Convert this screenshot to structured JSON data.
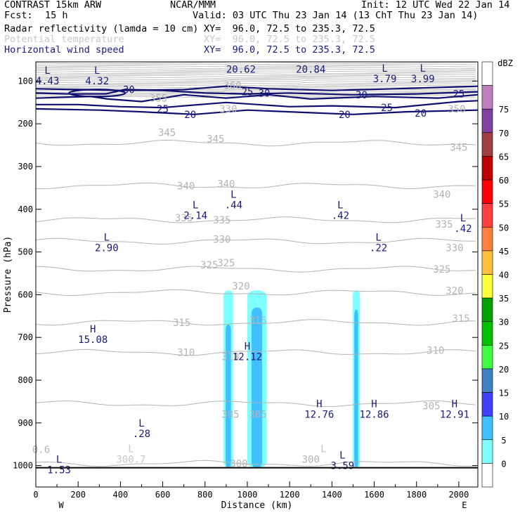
{
  "header": {
    "model": "CONTRAST 15km ARW",
    "center": "NCAR/MMM",
    "init": "Init: 12 UTC Wed 22 Jan 14",
    "fcst_label": "Fcst:",
    "fcst_value": "15 h",
    "valid": "Valid: 03 UTC Thu 23 Jan 14 (13 ChT Thu 23 Jan 14)"
  },
  "fields": [
    {
      "name": "Radar reflectivity (lamda = 10 cm)",
      "xy": "XY=  96.0, 72.5 to 235.3, 72.5",
      "color": "#000000"
    },
    {
      "name": "Potential temperature",
      "xy": "XY=  96.0, 72.5 to 235.3, 72.5",
      "color": "#c8c8c8"
    },
    {
      "name": "Horizontal wind speed",
      "xy": "XY=  96.0, 72.5 to 235.3, 72.5",
      "color": "#1a1a7a"
    }
  ],
  "chart_data": {
    "type": "cross-section",
    "xlabel": "Distance (km)",
    "ylabel": "Pressure (hPa)",
    "xlim": [
      0,
      2090
    ],
    "ylim": [
      1050,
      55
    ],
    "x_ticks": [
      "0",
      "200",
      "400",
      "600",
      "800",
      "1000",
      "1200",
      "1400",
      "1600",
      "1800",
      "2000"
    ],
    "y_ticks": [
      "100",
      "200",
      "300",
      "400",
      "500",
      "600",
      "700",
      "800",
      "900",
      "1000"
    ],
    "x_end_labels": {
      "left": "W",
      "right": "E"
    },
    "colorbar": {
      "unit": "dBZ",
      "levels": [
        "0",
        "5",
        "10",
        "15",
        "20",
        "25",
        "30",
        "35",
        "40",
        "45",
        "50",
        "55",
        "60",
        "65",
        "70",
        "75"
      ],
      "colors": [
        "#ffffff",
        "#80ffff",
        "#40c0ff",
        "#4040ff",
        "#4080c0",
        "#40ff40",
        "#00c000",
        "#00a000",
        "#ffff40",
        "#ffc040",
        "#ff8040",
        "#ff4040",
        "#ff0000",
        "#c00000",
        "#a04040",
        "#8040a0",
        "#c080c0",
        "#ffffff"
      ]
    },
    "reflectivity_columns": [
      {
        "x_center": 910,
        "width": 45,
        "top_p": 590,
        "fill": "#80ffff"
      },
      {
        "x_center": 910,
        "width": 25,
        "top_p": 670,
        "fill": "#40c0ff"
      },
      {
        "x_center": 1045,
        "width": 90,
        "top_p": 590,
        "fill": "#80ffff"
      },
      {
        "x_center": 1045,
        "width": 50,
        "top_p": 630,
        "fill": "#40c0ff"
      },
      {
        "x_center": 1515,
        "width": 35,
        "top_p": 590,
        "fill": "#80ffff"
      },
      {
        "x_center": 1515,
        "width": 18,
        "top_p": 635,
        "fill": "#40c0ff"
      }
    ],
    "theta_contours": [
      {
        "label": "345",
        "p": 245
      },
      {
        "label": "340",
        "p": 345
      },
      {
        "label": "335",
        "p": 425
      },
      {
        "label": "330",
        "p": 475
      },
      {
        "label": "325",
        "p": 540
      },
      {
        "label": "320",
        "p": 595
      },
      {
        "label": "315",
        "p": 665
      },
      {
        "label": "310",
        "p": 735
      },
      {
        "label": "305",
        "p": 855
      },
      {
        "label": "300",
        "p": 995
      }
    ],
    "theta_labels": [
      {
        "t": "355",
        "x": 580,
        "p": 140
      },
      {
        "t": "360",
        "x": 930,
        "p": 110
      },
      {
        "t": "350",
        "x": 1990,
        "p": 165
      },
      {
        "t": "330",
        "x": 910,
        "p": 165
      },
      {
        "t": "345",
        "x": 620,
        "p": 220
      },
      {
        "t": "345",
        "x": 850,
        "p": 235
      },
      {
        "t": "345",
        "x": 2000,
        "p": 255
      },
      {
        "t": "340",
        "x": 710,
        "p": 345
      },
      {
        "t": "340",
        "x": 900,
        "p": 340
      },
      {
        "t": "340",
        "x": 1920,
        "p": 365
      },
      {
        "t": "335",
        "x": 700,
        "p": 420
      },
      {
        "t": "335",
        "x": 880,
        "p": 425
      },
      {
        "t": "335",
        "x": 1930,
        "p": 435
      },
      {
        "t": "330",
        "x": 880,
        "p": 470
      },
      {
        "t": "330",
        "x": 1980,
        "p": 490
      },
      {
        "t": "325",
        "x": 820,
        "p": 530
      },
      {
        "t": "325",
        "x": 900,
        "p": 525
      },
      {
        "t": "325",
        "x": 1920,
        "p": 540
      },
      {
        "t": "320",
        "x": 970,
        "p": 580
      },
      {
        "t": "320",
        "x": 1980,
        "p": 590
      },
      {
        "t": "315",
        "x": 690,
        "p": 665
      },
      {
        "t": "315",
        "x": 1050,
        "p": 660
      },
      {
        "t": "315",
        "x": 2010,
        "p": 655
      },
      {
        "t": "310",
        "x": 710,
        "p": 735
      },
      {
        "t": "310",
        "x": 920,
        "p": 745
      },
      {
        "t": "310",
        "x": 1890,
        "p": 730
      },
      {
        "t": "305",
        "x": 920,
        "p": 880
      },
      {
        "t": "305",
        "x": 1050,
        "p": 880
      },
      {
        "t": "305",
        "x": 1870,
        "p": 860
      },
      {
        "t": "300",
        "x": 960,
        "p": 995
      },
      {
        "t": "300",
        "x": 1300,
        "p": 985
      },
      {
        "t": "0.6",
        "x": 25,
        "p": 962
      }
    ],
    "wind_contours": [
      {
        "label": "30",
        "labels_x": [
          440,
          1080,
          1540
        ]
      },
      {
        "label": "25",
        "labels_x": [
          590,
          1000,
          1660,
          2000
        ]
      },
      {
        "label": "20",
        "labels_x": [
          720,
          1460,
          1820
        ]
      }
    ],
    "wind_labels": [
      {
        "t": "30",
        "x": 440,
        "p": 120
      },
      {
        "t": "25",
        "x": 1000,
        "p": 125
      },
      {
        "t": "30",
        "x": 1080,
        "p": 128
      },
      {
        "t": "30",
        "x": 1540,
        "p": 132
      },
      {
        "t": "25",
        "x": 2000,
        "p": 130
      },
      {
        "t": "25",
        "x": 600,
        "p": 165
      },
      {
        "t": "20",
        "x": 730,
        "p": 178
      },
      {
        "t": "25",
        "x": 1660,
        "p": 162
      },
      {
        "t": "20",
        "x": 1460,
        "p": 178
      },
      {
        "t": "20",
        "x": 1820,
        "p": 175
      },
      {
        "t": "20.62",
        "x": 970,
        "p": 72
      },
      {
        "t": "20.84",
        "x": 1300,
        "p": 72
      }
    ],
    "extrema": [
      {
        "type": "L",
        "value": "4.43",
        "x": 55,
        "p": 75,
        "color": "#1a1a7a"
      },
      {
        "type": "L",
        "value": "4.32",
        "x": 290,
        "p": 75,
        "color": "#1a1a7a"
      },
      {
        "type": "L",
        "value": "3.79",
        "x": 1650,
        "p": 70,
        "color": "#1a1a7a"
      },
      {
        "type": "L",
        "value": "3.99",
        "x": 1830,
        "p": 70,
        "color": "#1a1a7a"
      },
      {
        "type": "L",
        "value": ".44",
        "x": 935,
        "p": 365,
        "color": "#1a1a7a"
      },
      {
        "type": "L",
        "value": "2.14",
        "x": 755,
        "p": 390,
        "color": "#1a1a7a"
      },
      {
        "type": "L",
        "value": ".42",
        "x": 1440,
        "p": 390,
        "color": "#1a1a7a"
      },
      {
        "type": "L",
        "value": ".42",
        "x": 2020,
        "p": 420,
        "color": "#1a1a7a"
      },
      {
        "type": "L",
        "value": "2.90",
        "x": 335,
        "p": 465,
        "color": "#1a1a7a"
      },
      {
        "type": "L",
        "value": ".22",
        "x": 1620,
        "p": 465,
        "color": "#1a1a7a"
      },
      {
        "type": "H",
        "value": "15.08",
        "x": 270,
        "p": 680,
        "color": "#1a1a7a"
      },
      {
        "type": "H",
        "value": "12.12",
        "x": 1000,
        "p": 720,
        "color": "#1a1a7a"
      },
      {
        "type": "H",
        "value": "12.76",
        "x": 1340,
        "p": 855,
        "color": "#1a1a7a"
      },
      {
        "type": "H",
        "value": "12.86",
        "x": 1600,
        "p": 855,
        "color": "#1a1a7a"
      },
      {
        "type": "H",
        "value": "12.91",
        "x": 1980,
        "p": 855,
        "color": "#1a1a7a"
      },
      {
        "type": "L",
        "value": ".28",
        "x": 500,
        "p": 900,
        "color": "#1a1a7a"
      },
      {
        "type": "L",
        "value": "300.7",
        "x": 450,
        "p": 960,
        "color": "#c8c8c8"
      },
      {
        "type": "L",
        "value": "1.53",
        "x": 110,
        "p": 985,
        "color": "#1a1a7a"
      },
      {
        "type": "L",
        "value": "3.59",
        "x": 1450,
        "p": 975,
        "color": "#1a1a7a"
      }
    ],
    "extrema_extra": [
      {
        "type": "L",
        "value": "",
        "x": 1360,
        "p": 960,
        "color": "#c8c8c8"
      }
    ]
  }
}
